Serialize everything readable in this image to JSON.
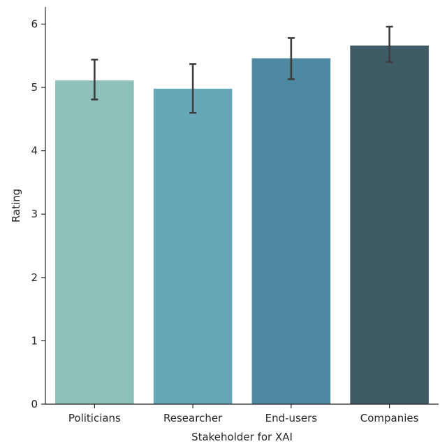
{
  "chart_data": {
    "type": "bar",
    "title": "",
    "xlabel": "Stakeholder for XAI",
    "ylabel": "Rating",
    "ylim": [
      0,
      6.27
    ],
    "yticks": [
      0,
      1,
      2,
      3,
      4,
      5,
      6
    ],
    "ytick_labels": [
      "0",
      "1",
      "2",
      "3",
      "4",
      "5",
      "6"
    ],
    "grid": false,
    "legend": "none",
    "categories": [
      "Politicians",
      "Researcher",
      "End-users",
      "Companies"
    ],
    "values": [
      5.11,
      4.98,
      5.46,
      5.66
    ],
    "error_low": [
      4.81,
      4.6,
      5.13,
      5.4
    ],
    "error_high": [
      5.44,
      5.37,
      5.78,
      5.96
    ],
    "colors": [
      "#8cc0b9",
      "#66a8b8",
      "#4e88a1",
      "#3f5c66"
    ]
  }
}
